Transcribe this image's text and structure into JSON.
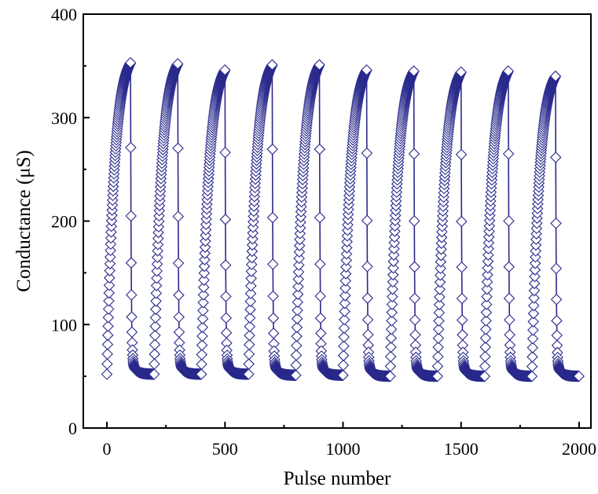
{
  "chart_data": {
    "type": "scatter",
    "title": "",
    "xlabel": "Pulse number",
    "ylabel": "Conductance (μS)",
    "xlim": [
      -100,
      2050
    ],
    "ylim": [
      0,
      400
    ],
    "xticks": [
      0,
      500,
      1000,
      1500,
      2000
    ],
    "yticks": [
      0,
      100,
      200,
      300,
      400
    ],
    "xtick_labels": [
      "0",
      "500",
      "1000",
      "1500",
      "2000"
    ],
    "ytick_labels": [
      "0",
      "100",
      "200",
      "300",
      "400"
    ],
    "grid": false,
    "legend": "none",
    "marker": "open-diamond",
    "color": "#2a2a8c",
    "connected": true,
    "cycles": {
      "count": 10,
      "pulses_per_cycle": 200,
      "potentiation_pulses": 100,
      "depression_pulses": 100,
      "start_x": [
        0,
        200,
        400,
        600,
        800,
        1000,
        1200,
        1400,
        1600,
        1800
      ],
      "min_values": [
        52,
        52,
        52,
        52,
        51,
        51,
        50,
        50,
        50,
        50
      ],
      "max_values": [
        353,
        352,
        346,
        351,
        351,
        346,
        345,
        344,
        345,
        340
      ]
    }
  }
}
